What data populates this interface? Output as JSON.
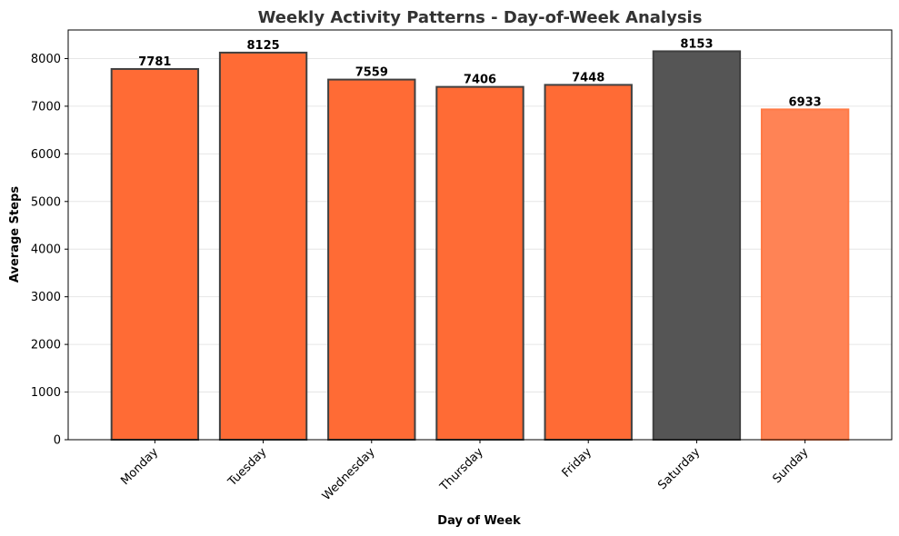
{
  "chart_data": {
    "type": "bar",
    "title": "Weekly Activity Patterns - Day-of-Week Analysis",
    "xlabel": "Day of Week",
    "ylabel": "Average Steps",
    "categories": [
      "Monday",
      "Tuesday",
      "Wednesday",
      "Thursday",
      "Friday",
      "Saturday",
      "Sunday"
    ],
    "values": [
      7781,
      8125,
      7559,
      7406,
      7448,
      8153,
      6933
    ],
    "data_labels": [
      "7781",
      "8125",
      "7559",
      "7406",
      "7448",
      "8153",
      "6933"
    ],
    "ylim": [
      0,
      8600
    ],
    "yticks": [
      0,
      1000,
      2000,
      3000,
      4000,
      5000,
      6000,
      7000,
      8000
    ],
    "ytick_labels": [
      "0",
      "1000",
      "2000",
      "3000",
      "4000",
      "5000",
      "6000",
      "7000",
      "8000"
    ],
    "grid": "horizontal",
    "bar_colors": [
      "#ff6b35",
      "#ff6b35",
      "#ff6b35",
      "#ff6b35",
      "#ff6b35",
      "#555555",
      "#ff8355"
    ],
    "bar_edge_colors": [
      "#404040",
      "#404040",
      "#404040",
      "#404040",
      "#404040",
      "#404040",
      "#ff7a45"
    ]
  }
}
